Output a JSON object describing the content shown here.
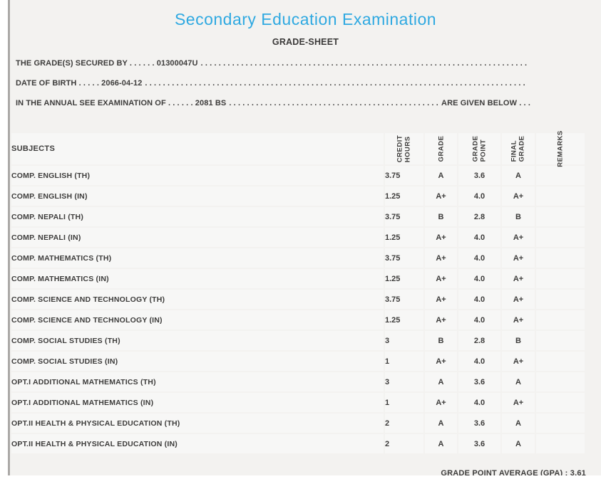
{
  "panel": {
    "title": "Secondary Education Examination",
    "subtitle": "GRADE-SHEET"
  },
  "info_lines": [
    {
      "text": "THE GRADE(S) SECURED BY . . . . . . 01300047U",
      "suffix": ""
    },
    {
      "text": "DATE OF BIRTH . . . . . 2066-04-12",
      "suffix": ""
    },
    {
      "text": "IN THE ANNUAL SEE EXAMINATION OF . . . . . . 2081 BS",
      "suffix": "ARE GIVEN BELOW . . ."
    }
  ],
  "leader_dots": ". . . . . . . . . . . . . . . . . . . . . . . . . . . . . . . . . . . . . . . . . . . . . . . . . . . . . . . . . . . . . . . . . . . . . . . . . . . . . . . . . . . . . . . . . . . . . . . . . . . . . . . . . . . . . . . .",
  "table": {
    "subjects_header": "SUBJECTS",
    "columns": [
      {
        "id": "credit-hours",
        "lines": [
          "CREDIT",
          "HOURS"
        ]
      },
      {
        "id": "grade",
        "lines": [
          "GRADE"
        ]
      },
      {
        "id": "grade-point",
        "lines": [
          "GRADE",
          "POINT"
        ]
      },
      {
        "id": "final-grade",
        "lines": [
          "FINAL",
          "GRADE"
        ]
      },
      {
        "id": "remarks",
        "lines": [
          "REMARKS"
        ]
      }
    ],
    "rows": [
      {
        "subject": "COMP. ENGLISH (TH)",
        "credit_hours": "3.75",
        "grade": "A",
        "grade_point": "3.6",
        "final_grade": "A",
        "remarks": ""
      },
      {
        "subject": "COMP. ENGLISH (IN)",
        "credit_hours": "1.25",
        "grade": "A+",
        "grade_point": "4.0",
        "final_grade": "A+",
        "remarks": ""
      },
      {
        "subject": "COMP. NEPALI (TH)",
        "credit_hours": "3.75",
        "grade": "B",
        "grade_point": "2.8",
        "final_grade": "B",
        "remarks": ""
      },
      {
        "subject": "COMP. NEPALI (IN)",
        "credit_hours": "1.25",
        "grade": "A+",
        "grade_point": "4.0",
        "final_grade": "A+",
        "remarks": ""
      },
      {
        "subject": "COMP. MATHEMATICS (TH)",
        "credit_hours": "3.75",
        "grade": "A+",
        "grade_point": "4.0",
        "final_grade": "A+",
        "remarks": ""
      },
      {
        "subject": "COMP. MATHEMATICS (IN)",
        "credit_hours": "1.25",
        "grade": "A+",
        "grade_point": "4.0",
        "final_grade": "A+",
        "remarks": ""
      },
      {
        "subject": "COMP. SCIENCE AND TECHNOLOGY (TH)",
        "credit_hours": "3.75",
        "grade": "A+",
        "grade_point": "4.0",
        "final_grade": "A+",
        "remarks": ""
      },
      {
        "subject": "COMP. SCIENCE AND TECHNOLOGY (IN)",
        "credit_hours": "1.25",
        "grade": "A+",
        "grade_point": "4.0",
        "final_grade": "A+",
        "remarks": ""
      },
      {
        "subject": "COMP. SOCIAL STUDIES (TH)",
        "credit_hours": "3",
        "grade": "B",
        "grade_point": "2.8",
        "final_grade": "B",
        "remarks": ""
      },
      {
        "subject": "COMP. SOCIAL STUDIES (IN)",
        "credit_hours": "1",
        "grade": "A+",
        "grade_point": "4.0",
        "final_grade": "A+",
        "remarks": ""
      },
      {
        "subject": "OPT.I ADDITIONAL MATHEMATICS (TH)",
        "credit_hours": "3",
        "grade": "A",
        "grade_point": "3.6",
        "final_grade": "A",
        "remarks": ""
      },
      {
        "subject": "OPT.I ADDITIONAL MATHEMATICS (IN)",
        "credit_hours": "1",
        "grade": "A+",
        "grade_point": "4.0",
        "final_grade": "A+",
        "remarks": ""
      },
      {
        "subject": "OPT.II HEALTH & PHYSICAL EDUCATION (TH)",
        "credit_hours": "2",
        "grade": "A",
        "grade_point": "3.6",
        "final_grade": "A",
        "remarks": ""
      },
      {
        "subject": "OPT.II HEALTH & PHYSICAL EDUCATION (IN)",
        "credit_hours": "2",
        "grade": "A",
        "grade_point": "3.6",
        "final_grade": "A",
        "remarks": ""
      }
    ]
  },
  "footer": {
    "gpa_text": "GRADE POINT AVERAGE (GPA) : 3.61"
  },
  "colors": {
    "accent_blue": "#2fa9e1",
    "text": "#3d3c3b",
    "panel_bg": "#f3f2f0",
    "cell_bg": "#f7f7f6",
    "separator": "#ffffff"
  }
}
